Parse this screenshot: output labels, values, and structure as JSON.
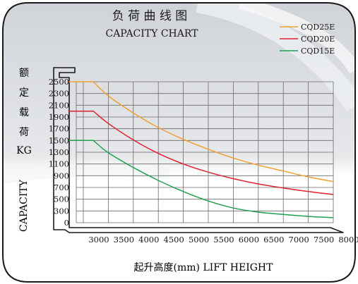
{
  "title_cn": "负 荷 曲 线 图",
  "title_en": "CAPACITY CHART",
  "ylabel_cn": [
    "额",
    "定",
    "载",
    "荷"
  ],
  "ylabel_unit": "KG",
  "ylabel_en": "CAPACITY",
  "xlabel": "起升高度(mm) LIFT HEIGHT",
  "colors": {
    "CQD25E": "#f0a030",
    "CQD20E": "#e02030",
    "CQD15E": "#20a050",
    "grid": "#6a6a6a",
    "frame": "#1a1a1a"
  },
  "chart_data": {
    "type": "line",
    "title": "CAPACITY CHART",
    "xlabel": "起升高度(mm) LIFT HEIGHT",
    "ylabel": "CAPACITY",
    "x_ticks": [
      "3000",
      "3500",
      "4000",
      "4500",
      "5000",
      "5500",
      "6000",
      "6500",
      "7000",
      "7500",
      "8000"
    ],
    "y_ticks": [
      "0",
      "300",
      "500",
      "700",
      "900",
      "1100",
      "1300",
      "1500",
      "1700",
      "1900",
      "2100",
      "2300",
      "2500"
    ],
    "xlim": [
      2700,
      8000
    ],
    "ylim": [
      0,
      2500
    ],
    "grid": true,
    "legend_position": "top-right",
    "series": [
      {
        "name": "CQD25E",
        "color": "#f0a030",
        "x": [
          2700,
          3200,
          3500,
          4000,
          4500,
          5000,
          5500,
          6000,
          6500,
          7000,
          7500,
          8000
        ],
        "y": [
          2500,
          2500,
          2260,
          1970,
          1720,
          1520,
          1350,
          1200,
          1080,
          980,
          880,
          800
        ]
      },
      {
        "name": "CQD20E",
        "color": "#e02030",
        "x": [
          2700,
          3200,
          3500,
          4000,
          4500,
          5000,
          5500,
          6000,
          6500,
          7000,
          7500,
          8000
        ],
        "y": [
          2000,
          2000,
          1790,
          1510,
          1280,
          1100,
          960,
          850,
          760,
          690,
          630,
          580
        ]
      },
      {
        "name": "CQD15E",
        "color": "#20a050",
        "x": [
          2700,
          3200,
          3500,
          4000,
          4500,
          5000,
          5500,
          6000,
          6500,
          7000,
          7500,
          8000
        ],
        "y": [
          1500,
          1500,
          1290,
          1040,
          820,
          630,
          470,
          350,
          270,
          210,
          160,
          130
        ]
      }
    ]
  }
}
